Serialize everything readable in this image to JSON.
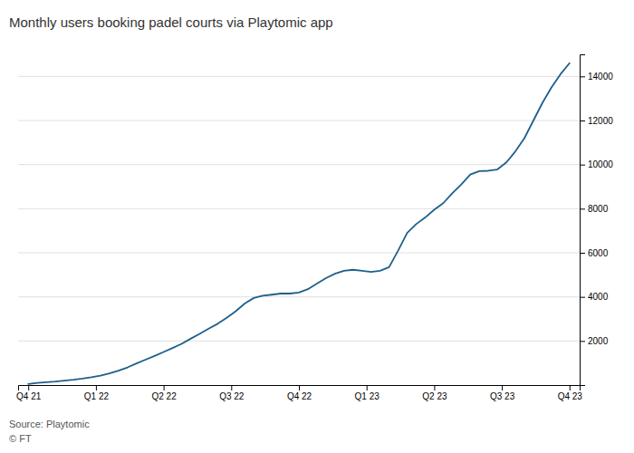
{
  "chart_data": {
    "type": "line",
    "title": "Monthly users booking padel courts via Playtomic app",
    "annotations": [
      "Source: Playtomic",
      "© FT"
    ],
    "color": "#1f5f8b",
    "x": [
      0,
      0.13333333333333333,
      0.26666666666666666,
      0.4,
      0.5333333333333333,
      0.6666666666666666,
      0.8,
      0.9333333333333333,
      1.0666666666666667,
      1.2,
      1.3333333333333333,
      1.4666666666666666,
      1.6,
      1.7333333333333334,
      1.8666666666666667,
      2,
      2.1333333333333333,
      2.2666666666666666,
      2.4,
      2.533333333333333,
      2.6666666666666665,
      2.8,
      2.933333333333333,
      3.0666666666666664,
      3.2,
      3.3333333333333335,
      3.466666666666667,
      3.6,
      3.7333333333333334,
      3.8666666666666667,
      4,
      4.133333333333333,
      4.266666666666667,
      4.4,
      4.533333333333333,
      4.666666666666667,
      4.8,
      4.933333333333334,
      5.066666666666666,
      5.2,
      5.333333333333333,
      5.466666666666667,
      5.6,
      5.733333333333333,
      5.866666666666666,
      6,
      6.133333333333333,
      6.266666666666667,
      6.4,
      6.533333333333333,
      6.666666666666667,
      6.8,
      6.933333333333334,
      7.066666666666666,
      7.2,
      7.333333333333333,
      7.466666666666667,
      7.6,
      7.733333333333333,
      7.866666666666666,
      8
    ],
    "values": [
      50,
      100,
      130,
      160,
      200,
      240,
      290,
      350,
      430,
      530,
      650,
      800,
      980,
      1150,
      1320,
      1500,
      1680,
      1870,
      2100,
      2320,
      2560,
      2780,
      3050,
      3350,
      3700,
      3950,
      4050,
      4100,
      4150,
      4150,
      4200,
      4350,
      4600,
      4850,
      5050,
      5180,
      5230,
      5180,
      5130,
      5180,
      5350,
      6100,
      6900,
      7300,
      7600,
      7950,
      8250,
      8700,
      9100,
      9550,
      9700,
      9720,
      9780,
      10100,
      10600,
      11200,
      12000,
      12800,
      13500,
      14100,
      14600
    ],
    "xlim": [
      -0.15,
      8.15
    ],
    "xticks": [
      {
        "value": 0,
        "label": "Q4 21"
      },
      {
        "value": 1,
        "label": "Q1 22"
      },
      {
        "value": 2,
        "label": "Q2 22"
      },
      {
        "value": 3,
        "label": "Q3 22"
      },
      {
        "value": 4,
        "label": "Q4 22"
      },
      {
        "value": 5,
        "label": "Q1 23"
      },
      {
        "value": 6,
        "label": "Q2 23"
      },
      {
        "value": 7,
        "label": "Q3 23"
      },
      {
        "value": 8,
        "label": "Q4 23"
      }
    ],
    "ylim": [
      0,
      15000
    ],
    "yticks": [
      2000,
      4000,
      6000,
      8000,
      10000,
      12000,
      14000
    ],
    "grid": true
  }
}
